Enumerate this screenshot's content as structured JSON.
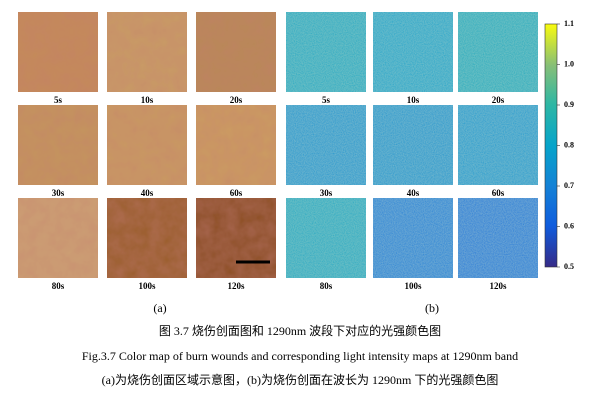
{
  "photos": {
    "labels": [
      "5s",
      "10s",
      "20s",
      "30s",
      "40s",
      "60s",
      "80s",
      "100s",
      "120s"
    ],
    "panel_label": "(a)"
  },
  "maps": {
    "tiles": [
      {
        "label": "5s",
        "value": 0.82
      },
      {
        "label": "10s",
        "value": 0.8
      },
      {
        "label": "20s",
        "value": 0.83
      },
      {
        "label": "30s",
        "value": 0.76
      },
      {
        "label": "40s",
        "value": 0.76
      },
      {
        "label": "60s",
        "value": 0.77
      },
      {
        "label": "80s",
        "value": 0.82
      },
      {
        "label": "100s",
        "value": 0.7
      },
      {
        "label": "120s",
        "value": 0.68
      }
    ],
    "panel_label": "(b)",
    "colorbar": {
      "range": [
        0.5,
        1.1
      ],
      "ticks": [
        1.1,
        {
          "value": 1,
          "label": "1.0"
        },
        0.9,
        0.8,
        0.7,
        0.6,
        0.5
      ]
    }
  },
  "caption": {
    "cn_title": "图 3.7 烧伤创面图和 1290nm 波段下对应的光强颜色图",
    "en_title": "Fig.3.7 Color map of burn wounds and corresponding light intensity maps at 1290nm band",
    "subtitle": "(a)为烧伤创面区域示意图，(b)为烧伤创面在波长为 1290nm 下的光强颜色图"
  }
}
